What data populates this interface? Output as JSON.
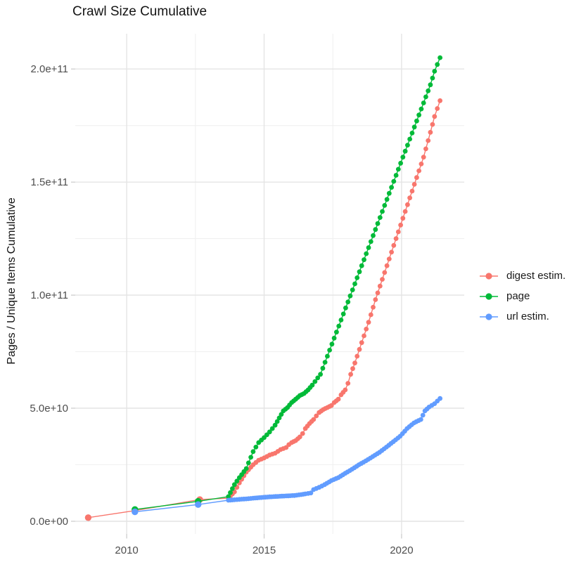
{
  "chart_data": {
    "type": "scatter",
    "title": "Crawl Size Cumulative",
    "xlabel": "",
    "ylabel": "Pages / Unique Items Cumulative",
    "value_unit": "1e9",
    "grid": "on",
    "legend_position": "right",
    "xlim": [
      2008.13,
      2022.28
    ],
    "ylim_e9": [
      -5.6,
      215.6
    ],
    "x_ticks": [
      {
        "value": 2010,
        "label": "2010"
      },
      {
        "value": 2015,
        "label": "2015"
      },
      {
        "value": 2020,
        "label": "2020"
      }
    ],
    "x_minor": [
      2012.5,
      2017.5
    ],
    "y_ticks": [
      {
        "value_e9": 0,
        "label": "0.0e+00"
      },
      {
        "value_e9": 50,
        "label": "5.0e+10"
      },
      {
        "value_e9": 100,
        "label": "1.0e+11"
      },
      {
        "value_e9": 150,
        "label": "1.5e+11"
      },
      {
        "value_e9": 200,
        "label": "2.0e+11"
      }
    ],
    "y_minor_e9": [
      25,
      75,
      125,
      175
    ],
    "dot_step": 0.085,
    "legend": [
      {
        "label": "digest estim.",
        "color": "#F8766D"
      },
      {
        "label": "page",
        "color": "#00BA38"
      },
      {
        "label": "url estim.",
        "color": "#619CFF"
      }
    ],
    "series": [
      {
        "id": "digest-estim",
        "name": "digest estim.",
        "color": "#F8766D",
        "dense_from": 2013.5,
        "points": [
          [
            2008.6,
            1.6
          ],
          [
            2010.3,
            4.7
          ],
          [
            2012.66,
            9.6
          ],
          [
            2013.7,
            10.2
          ],
          [
            2013.92,
            13
          ],
          [
            2014.1,
            17
          ],
          [
            2014.35,
            21.7
          ],
          [
            2014.6,
            25
          ],
          [
            2014.8,
            27
          ],
          [
            2015.0,
            28
          ],
          [
            2015.2,
            29.3
          ],
          [
            2015.4,
            30.1
          ],
          [
            2015.6,
            31.7
          ],
          [
            2015.8,
            32.6
          ],
          [
            2015.9,
            33.9
          ],
          [
            2016.0,
            34.8
          ],
          [
            2016.15,
            35.7
          ],
          [
            2016.3,
            37.3
          ],
          [
            2016.4,
            38.8
          ],
          [
            2016.5,
            41
          ],
          [
            2016.65,
            43.2
          ],
          [
            2016.8,
            45
          ],
          [
            2016.9,
            46.6
          ],
          [
            2017.0,
            48.1
          ],
          [
            2017.15,
            49.4
          ],
          [
            2017.3,
            50.3
          ],
          [
            2017.45,
            51.2
          ],
          [
            2017.55,
            52.5
          ],
          [
            2017.7,
            54
          ],
          [
            2017.8,
            55.9
          ],
          [
            2017.95,
            58.1
          ],
          [
            2018.05,
            61
          ],
          [
            2018.15,
            65
          ],
          [
            2018.3,
            70
          ],
          [
            2018.55,
            79
          ],
          [
            2018.8,
            88
          ],
          [
            2019.05,
            98
          ],
          [
            2019.3,
            107
          ],
          [
            2019.55,
            116
          ],
          [
            2019.8,
            125
          ],
          [
            2020.05,
            134
          ],
          [
            2020.3,
            143
          ],
          [
            2020.55,
            152
          ],
          [
            2020.8,
            161
          ],
          [
            2021.05,
            172
          ],
          [
            2021.2,
            179
          ],
          [
            2021.4,
            186
          ]
        ]
      },
      {
        "id": "page",
        "name": "page",
        "color": "#00BA38",
        "dense_from": 2013.5,
        "points": [
          [
            2010.3,
            5.2
          ],
          [
            2012.6,
            8.8
          ],
          [
            2013.7,
            10.9
          ],
          [
            2013.92,
            16.2
          ],
          [
            2014.1,
            19.3
          ],
          [
            2014.35,
            23.3
          ],
          [
            2014.6,
            30.8
          ],
          [
            2014.8,
            34.8
          ],
          [
            2015.0,
            37
          ],
          [
            2015.2,
            39.5
          ],
          [
            2015.4,
            42.5
          ],
          [
            2015.55,
            45.7
          ],
          [
            2015.7,
            48.8
          ],
          [
            2015.85,
            50.3
          ],
          [
            2016.0,
            52.5
          ],
          [
            2016.15,
            54
          ],
          [
            2016.3,
            55.6
          ],
          [
            2016.45,
            56.5
          ],
          [
            2016.6,
            58.1
          ],
          [
            2016.75,
            60.2
          ],
          [
            2016.85,
            61.8
          ],
          [
            2016.95,
            63.4
          ],
          [
            2017.05,
            65
          ],
          [
            2017.3,
            73
          ],
          [
            2017.55,
            81
          ],
          [
            2017.8,
            89
          ],
          [
            2018.05,
            97
          ],
          [
            2018.3,
            105
          ],
          [
            2018.55,
            113
          ],
          [
            2018.8,
            121
          ],
          [
            2019.05,
            129
          ],
          [
            2019.3,
            137
          ],
          [
            2019.55,
            145
          ],
          [
            2019.8,
            153
          ],
          [
            2020.05,
            161
          ],
          [
            2020.3,
            169
          ],
          [
            2020.55,
            177
          ],
          [
            2020.8,
            185
          ],
          [
            2021.05,
            193
          ],
          [
            2021.2,
            199
          ],
          [
            2021.4,
            205
          ]
        ]
      },
      {
        "id": "url-estim",
        "name": "url estim.",
        "color": "#619CFF",
        "dense_from": 2013.5,
        "points": [
          [
            2010.3,
            4.2
          ],
          [
            2012.6,
            7.4
          ],
          [
            2013.7,
            9.3
          ],
          [
            2013.92,
            9.5
          ],
          [
            2014.1,
            9.7
          ],
          [
            2014.35,
            9.9
          ],
          [
            2014.6,
            10.2
          ],
          [
            2014.9,
            10.5
          ],
          [
            2015.2,
            10.8
          ],
          [
            2015.5,
            11.0
          ],
          [
            2015.8,
            11.2
          ],
          [
            2016.1,
            11.4
          ],
          [
            2016.35,
            11.8
          ],
          [
            2016.5,
            12.1
          ],
          [
            2016.7,
            12.5
          ],
          [
            2016.8,
            14.0
          ],
          [
            2017.0,
            15.0
          ],
          [
            2017.2,
            16.2
          ],
          [
            2017.45,
            18.0
          ],
          [
            2017.7,
            19.3
          ],
          [
            2017.95,
            21.2
          ],
          [
            2018.2,
            23.0
          ],
          [
            2018.45,
            25.0
          ],
          [
            2018.7,
            26.7
          ],
          [
            2018.95,
            28.6
          ],
          [
            2019.2,
            30.5
          ],
          [
            2019.45,
            32.8
          ],
          [
            2019.7,
            35.2
          ],
          [
            2019.95,
            37.6
          ],
          [
            2020.2,
            41.0
          ],
          [
            2020.45,
            43.5
          ],
          [
            2020.7,
            45.0
          ],
          [
            2020.85,
            48.8
          ],
          [
            2021.0,
            50.5
          ],
          [
            2021.2,
            52.0
          ],
          [
            2021.4,
            54.3
          ]
        ]
      }
    ]
  }
}
